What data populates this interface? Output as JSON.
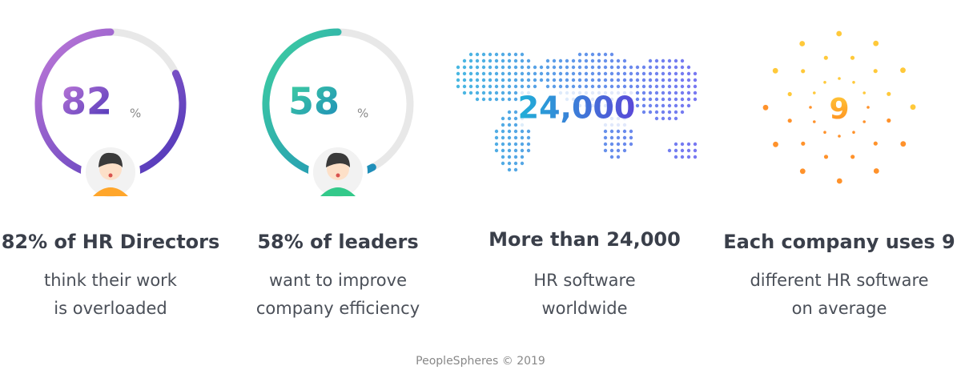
{
  "stats": [
    {
      "value": 82,
      "unit": "%",
      "title": "82% of HR Directors",
      "description": [
        "think their work",
        "is overloaded"
      ]
    },
    {
      "value": 58,
      "unit": "%",
      "title": "58% of leaders",
      "description": [
        "want to improve",
        "company efficiency"
      ]
    },
    {
      "value": "24,000",
      "title": "More than 24,000",
      "description": [
        "HR software",
        "worldwide"
      ]
    },
    {
      "value": 9,
      "title": "Each company uses 9",
      "description": [
        "different HR software",
        "on average"
      ]
    }
  ],
  "footer": "PeopleSpheres © 2019"
}
